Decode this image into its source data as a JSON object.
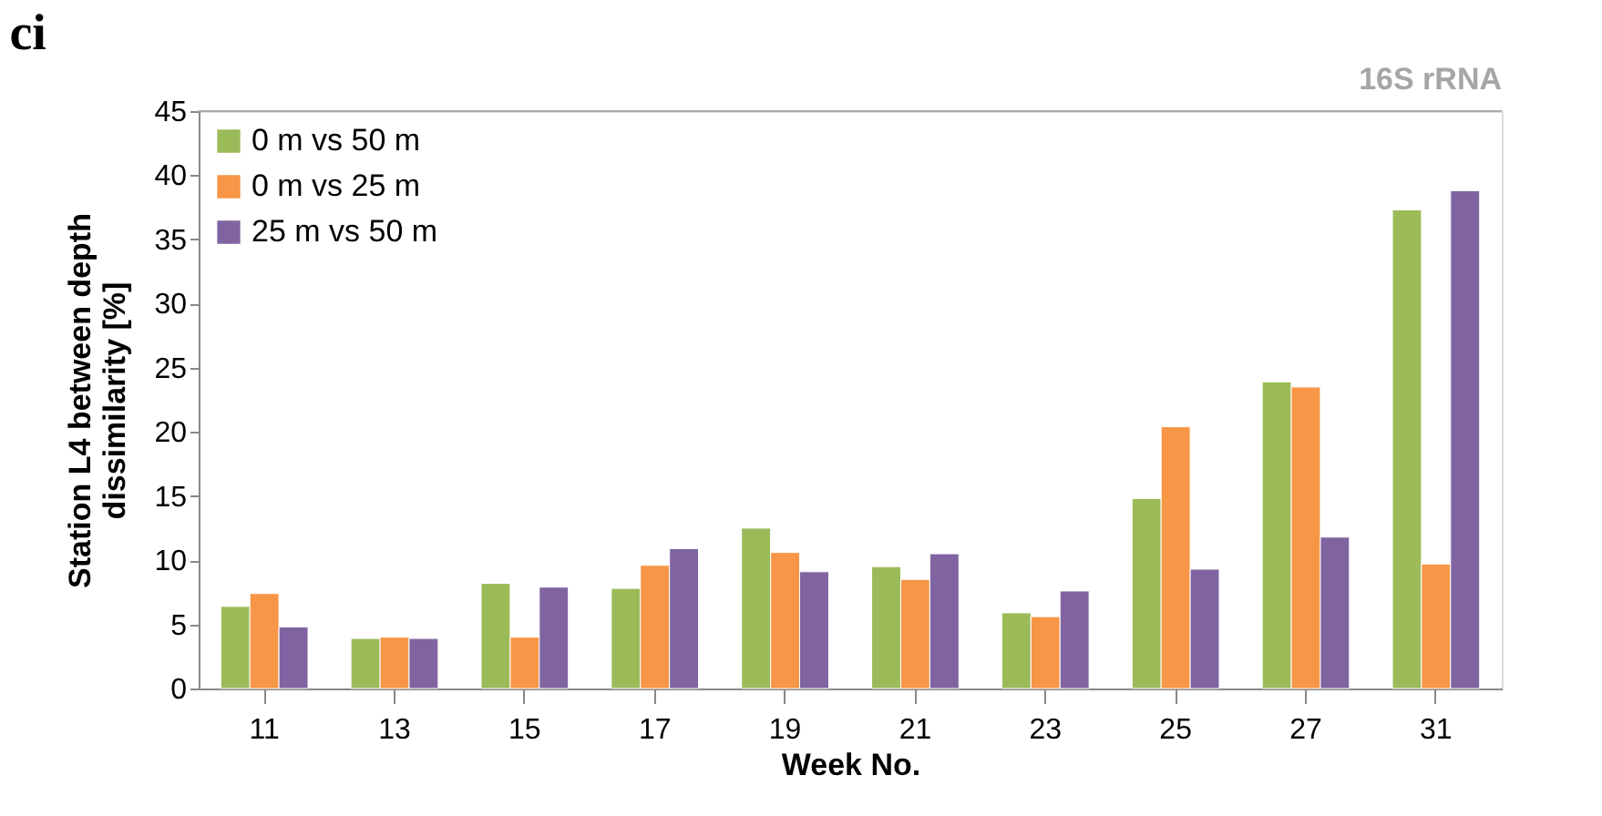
{
  "chart_data": {
    "type": "bar",
    "title": "ci",
    "annotations": [
      "16S rRNA"
    ],
    "xlabel": "Week No.",
    "ylabel": "Station L4 between depth dissimilarity [%]",
    "categories": [
      "11",
      "13",
      "15",
      "17",
      "19",
      "21",
      "23",
      "25",
      "27",
      "31"
    ],
    "series": [
      {
        "name": "0 m vs 50 m",
        "color": "#9bbb59",
        "values": [
          6.4,
          3.9,
          8.2,
          7.8,
          12.5,
          9.5,
          5.9,
          14.8,
          23.9,
          37.3
        ]
      },
      {
        "name": "0 m vs 25 m",
        "color": "#f79646",
        "values": [
          7.4,
          4.0,
          4.0,
          9.6,
          10.6,
          8.5,
          5.6,
          20.4,
          23.5,
          9.7
        ]
      },
      {
        "name": "25 m vs 50 m",
        "color": "#8064a2",
        "values": [
          4.8,
          3.9,
          7.9,
          10.9,
          9.1,
          10.5,
          7.6,
          9.3,
          11.8,
          38.8
        ]
      }
    ],
    "ylim": [
      0,
      45
    ],
    "yticks": [
      0,
      5,
      10,
      15,
      20,
      25,
      30,
      35,
      40,
      45
    ],
    "legend": "top left",
    "grid": false
  }
}
